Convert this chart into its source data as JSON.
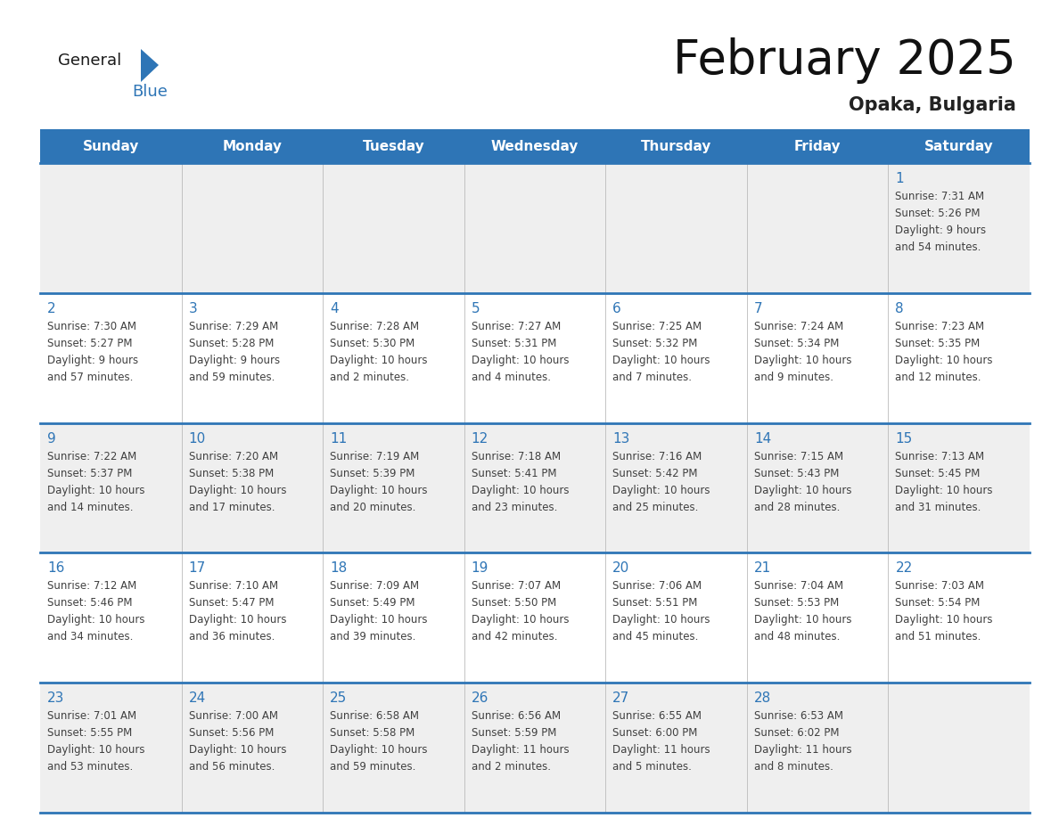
{
  "title": "February 2025",
  "subtitle": "Opaka, Bulgaria",
  "header_color": "#2E75B6",
  "header_text_color": "#FFFFFF",
  "background_color": "#FFFFFF",
  "alt_row_color": "#EFEFEF",
  "grid_line_color": "#2E75B6",
  "day_number_color": "#2E75B6",
  "info_text_color": "#404040",
  "days_of_week": [
    "Sunday",
    "Monday",
    "Tuesday",
    "Wednesday",
    "Thursday",
    "Friday",
    "Saturday"
  ],
  "calendar_data": [
    [
      null,
      null,
      null,
      null,
      null,
      null,
      {
        "day": "1",
        "sunrise": "7:31 AM",
        "sunset": "5:26 PM",
        "daylight": "9 hours",
        "daylight2": "and 54 minutes."
      }
    ],
    [
      {
        "day": "2",
        "sunrise": "7:30 AM",
        "sunset": "5:27 PM",
        "daylight": "9 hours",
        "daylight2": "and 57 minutes."
      },
      {
        "day": "3",
        "sunrise": "7:29 AM",
        "sunset": "5:28 PM",
        "daylight": "9 hours",
        "daylight2": "and 59 minutes."
      },
      {
        "day": "4",
        "sunrise": "7:28 AM",
        "sunset": "5:30 PM",
        "daylight": "10 hours",
        "daylight2": "and 2 minutes."
      },
      {
        "day": "5",
        "sunrise": "7:27 AM",
        "sunset": "5:31 PM",
        "daylight": "10 hours",
        "daylight2": "and 4 minutes."
      },
      {
        "day": "6",
        "sunrise": "7:25 AM",
        "sunset": "5:32 PM",
        "daylight": "10 hours",
        "daylight2": "and 7 minutes."
      },
      {
        "day": "7",
        "sunrise": "7:24 AM",
        "sunset": "5:34 PM",
        "daylight": "10 hours",
        "daylight2": "and 9 minutes."
      },
      {
        "day": "8",
        "sunrise": "7:23 AM",
        "sunset": "5:35 PM",
        "daylight": "10 hours",
        "daylight2": "and 12 minutes."
      }
    ],
    [
      {
        "day": "9",
        "sunrise": "7:22 AM",
        "sunset": "5:37 PM",
        "daylight": "10 hours",
        "daylight2": "and 14 minutes."
      },
      {
        "day": "10",
        "sunrise": "7:20 AM",
        "sunset": "5:38 PM",
        "daylight": "10 hours",
        "daylight2": "and 17 minutes."
      },
      {
        "day": "11",
        "sunrise": "7:19 AM",
        "sunset": "5:39 PM",
        "daylight": "10 hours",
        "daylight2": "and 20 minutes."
      },
      {
        "day": "12",
        "sunrise": "7:18 AM",
        "sunset": "5:41 PM",
        "daylight": "10 hours",
        "daylight2": "and 23 minutes."
      },
      {
        "day": "13",
        "sunrise": "7:16 AM",
        "sunset": "5:42 PM",
        "daylight": "10 hours",
        "daylight2": "and 25 minutes."
      },
      {
        "day": "14",
        "sunrise": "7:15 AM",
        "sunset": "5:43 PM",
        "daylight": "10 hours",
        "daylight2": "and 28 minutes."
      },
      {
        "day": "15",
        "sunrise": "7:13 AM",
        "sunset": "5:45 PM",
        "daylight": "10 hours",
        "daylight2": "and 31 minutes."
      }
    ],
    [
      {
        "day": "16",
        "sunrise": "7:12 AM",
        "sunset": "5:46 PM",
        "daylight": "10 hours",
        "daylight2": "and 34 minutes."
      },
      {
        "day": "17",
        "sunrise": "7:10 AM",
        "sunset": "5:47 PM",
        "daylight": "10 hours",
        "daylight2": "and 36 minutes."
      },
      {
        "day": "18",
        "sunrise": "7:09 AM",
        "sunset": "5:49 PM",
        "daylight": "10 hours",
        "daylight2": "and 39 minutes."
      },
      {
        "day": "19",
        "sunrise": "7:07 AM",
        "sunset": "5:50 PM",
        "daylight": "10 hours",
        "daylight2": "and 42 minutes."
      },
      {
        "day": "20",
        "sunrise": "7:06 AM",
        "sunset": "5:51 PM",
        "daylight": "10 hours",
        "daylight2": "and 45 minutes."
      },
      {
        "day": "21",
        "sunrise": "7:04 AM",
        "sunset": "5:53 PM",
        "daylight": "10 hours",
        "daylight2": "and 48 minutes."
      },
      {
        "day": "22",
        "sunrise": "7:03 AM",
        "sunset": "5:54 PM",
        "daylight": "10 hours",
        "daylight2": "and 51 minutes."
      }
    ],
    [
      {
        "day": "23",
        "sunrise": "7:01 AM",
        "sunset": "5:55 PM",
        "daylight": "10 hours",
        "daylight2": "and 53 minutes."
      },
      {
        "day": "24",
        "sunrise": "7:00 AM",
        "sunset": "5:56 PM",
        "daylight": "10 hours",
        "daylight2": "and 56 minutes."
      },
      {
        "day": "25",
        "sunrise": "6:58 AM",
        "sunset": "5:58 PM",
        "daylight": "10 hours",
        "daylight2": "and 59 minutes."
      },
      {
        "day": "26",
        "sunrise": "6:56 AM",
        "sunset": "5:59 PM",
        "daylight": "11 hours",
        "daylight2": "and 2 minutes."
      },
      {
        "day": "27",
        "sunrise": "6:55 AM",
        "sunset": "6:00 PM",
        "daylight": "11 hours",
        "daylight2": "and 5 minutes."
      },
      {
        "day": "28",
        "sunrise": "6:53 AM",
        "sunset": "6:02 PM",
        "daylight": "11 hours",
        "daylight2": "and 8 minutes."
      },
      null
    ]
  ]
}
